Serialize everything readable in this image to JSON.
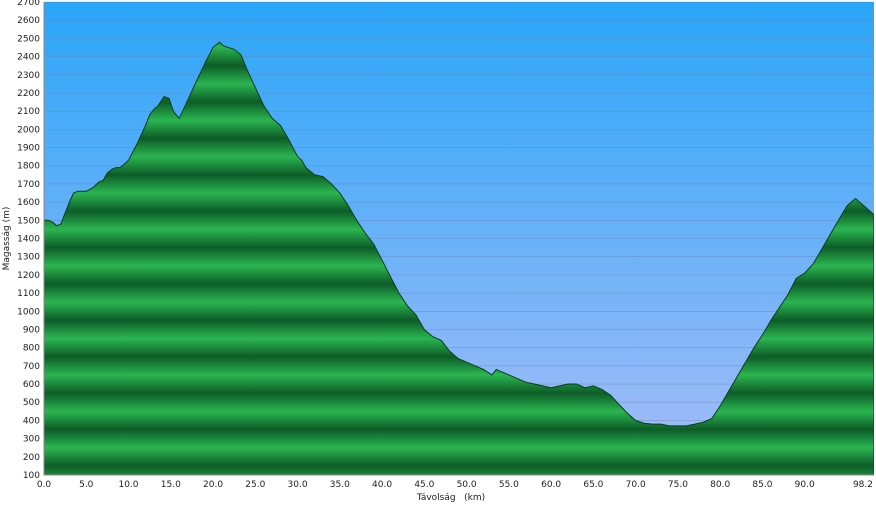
{
  "chart_data": {
    "type": "area",
    "title": "",
    "xlabel": "Távolság   (km)",
    "ylabel": "Magasság (m)",
    "xlim": [
      0,
      98.2
    ],
    "ylim": [
      100,
      2700
    ],
    "x_ticks": [
      0,
      5,
      10,
      15,
      20,
      25,
      30,
      35,
      40,
      45,
      50,
      55,
      60,
      65,
      70,
      75,
      80,
      85,
      90,
      98.2
    ],
    "x_tick_labels": [
      "0.0",
      "5.0",
      "10.0",
      "15.0",
      "20.0",
      "25.0",
      "30.0",
      "35.0",
      "40.0",
      "45.0",
      "50.0",
      "55.0",
      "60.0",
      "65.0",
      "70.0",
      "75.0",
      "80.0",
      "85.0",
      "90.0",
      "98.2"
    ],
    "y_ticks": [
      100,
      200,
      300,
      400,
      500,
      600,
      700,
      800,
      900,
      1000,
      1100,
      1200,
      1300,
      1400,
      1500,
      1600,
      1700,
      1800,
      1900,
      2000,
      2100,
      2200,
      2300,
      2400,
      2500,
      2600,
      2700
    ],
    "grid": true,
    "colors": {
      "sky_top": "#2aa6f8",
      "sky_bottom": "#a8bdf8",
      "fill_light": "#2bb550",
      "fill_dark": "#0d5c27",
      "outline": "#0a3d1a",
      "gridline": "#6f7fb0"
    },
    "series": [
      {
        "x": [
          0,
          0.5,
          1.0,
          1.5,
          2.0,
          2.5,
          3.0,
          3.5,
          4.0,
          5.0,
          5.8,
          6.5,
          7.0,
          7.5,
          8.0,
          8.5,
          9.0,
          10.0,
          11.0,
          12.0,
          12.5,
          13.0,
          13.5,
          14.2,
          14.8,
          15.3,
          16.0,
          17.0,
          18.0,
          19.0,
          20.0,
          20.8,
          21.2,
          21.8,
          22.5,
          23.3,
          24.0,
          25.0,
          26.0,
          27.0,
          28.0,
          29.0,
          30.0,
          30.5,
          31.0,
          32.0,
          33.0,
          34.0,
          35.0,
          36.0,
          37.0,
          38.0,
          39.0,
          40.0,
          41.0,
          42.0,
          43.0,
          44.0,
          45.0,
          46.0,
          47.0,
          48.0,
          49.0,
          50.0,
          51.0,
          52.0,
          53.0,
          53.5,
          54.0,
          55.0,
          56.0,
          57.0,
          58.0,
          59.0,
          60.0,
          61.0,
          62.0,
          63.0,
          64.0,
          65.0,
          66.0,
          67.0,
          68.0,
          69.0,
          70.0,
          71.0,
          72.0,
          73.0,
          74.0,
          75.0,
          76.0,
          77.0,
          78.0,
          79.0,
          80.0,
          81.0,
          82.0,
          83.0,
          84.0,
          85.0,
          86.0,
          87.0,
          88.0,
          89.0,
          90.0,
          91.0,
          92.0,
          93.0,
          94.0,
          95.0,
          96.0,
          96.5,
          97.0,
          98.2
        ],
        "y": [
          1500,
          1500,
          1490,
          1470,
          1480,
          1540,
          1600,
          1650,
          1660,
          1660,
          1680,
          1710,
          1720,
          1760,
          1780,
          1790,
          1790,
          1830,
          1920,
          2020,
          2080,
          2110,
          2130,
          2180,
          2170,
          2100,
          2060,
          2160,
          2260,
          2360,
          2450,
          2480,
          2460,
          2450,
          2440,
          2410,
          2330,
          2230,
          2130,
          2060,
          2020,
          1940,
          1850,
          1830,
          1790,
          1750,
          1740,
          1700,
          1650,
          1580,
          1500,
          1430,
          1370,
          1280,
          1190,
          1100,
          1030,
          980,
          900,
          860,
          840,
          780,
          740,
          720,
          700,
          680,
          650,
          680,
          670,
          650,
          630,
          610,
          600,
          590,
          580,
          590,
          600,
          600,
          580,
          590,
          570,
          540,
          490,
          440,
          400,
          385,
          380,
          380,
          370,
          370,
          370,
          380,
          390,
          410,
          480,
          560,
          640,
          720,
          800,
          870,
          950,
          1020,
          1090,
          1180,
          1210,
          1260,
          1340,
          1420,
          1500,
          1580,
          1620,
          1600,
          1580,
          1530
        ]
      }
    ]
  }
}
